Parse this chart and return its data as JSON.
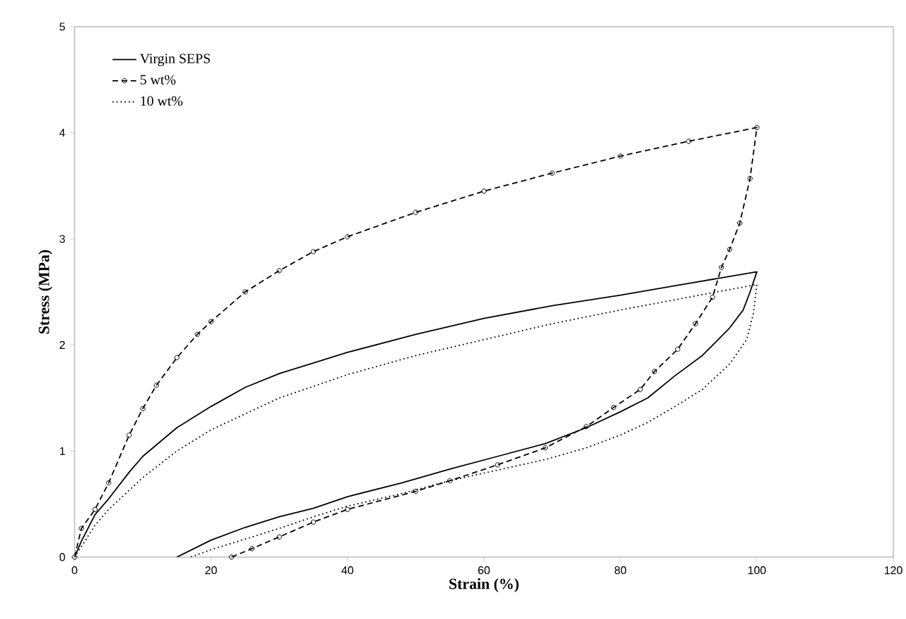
{
  "chart_data": {
    "type": "line",
    "xlabel": "Strain (%)",
    "ylabel": "Stress (MPa)",
    "xlim": [
      0,
      120
    ],
    "ylim": [
      0,
      5
    ],
    "xticks": [
      0,
      20,
      40,
      60,
      80,
      100,
      120
    ],
    "yticks": [
      0,
      1,
      2,
      3,
      4,
      5
    ],
    "legend": "top left",
    "series": [
      {
        "name": "Virgin SEPS",
        "color": "#000000",
        "line_style": "solid",
        "marker": "none",
        "x": [
          0,
          1,
          3,
          5,
          8,
          10,
          15,
          20,
          25,
          30,
          40,
          50,
          60,
          70,
          80,
          90,
          100,
          99,
          98,
          96,
          92,
          88,
          84,
          80,
          75,
          69,
          62,
          55,
          48,
          40,
          35,
          30,
          25,
          20,
          15
        ],
        "values": [
          0,
          0.15,
          0.4,
          0.55,
          0.8,
          0.95,
          1.22,
          1.42,
          1.6,
          1.73,
          1.93,
          2.1,
          2.25,
          2.37,
          2.47,
          2.58,
          2.69,
          2.5,
          2.33,
          2.16,
          1.9,
          1.71,
          1.5,
          1.37,
          1.22,
          1.07,
          0.95,
          0.83,
          0.7,
          0.57,
          0.46,
          0.38,
          0.28,
          0.16,
          0
        ]
      },
      {
        "name": "5 wt%",
        "color": "#000000",
        "line_style": "dashed",
        "marker": "circle",
        "x": [
          0,
          1,
          3,
          5,
          8,
          10,
          12,
          15,
          18,
          20,
          25,
          30,
          35,
          40,
          50,
          60,
          70,
          80,
          90,
          100,
          99,
          97.5,
          96,
          94.8,
          93.5,
          91,
          88.4,
          85,
          82.9,
          79,
          75,
          69,
          62,
          55,
          50,
          40,
          35,
          30,
          26,
          23
        ],
        "values": [
          0,
          0.27,
          0.45,
          0.7,
          1.15,
          1.4,
          1.62,
          1.88,
          2.1,
          2.22,
          2.5,
          2.7,
          2.88,
          3.02,
          3.25,
          3.45,
          3.62,
          3.78,
          3.92,
          4.05,
          3.57,
          3.15,
          2.9,
          2.73,
          2.45,
          2.2,
          1.96,
          1.75,
          1.58,
          1.41,
          1.23,
          1.03,
          0.87,
          0.72,
          0.62,
          0.45,
          0.33,
          0.19,
          0.08,
          0
        ]
      },
      {
        "name": "10 wt%",
        "color": "#000000",
        "line_style": "dotted",
        "marker": "none",
        "x": [
          0,
          3,
          5,
          10,
          15,
          20,
          25,
          30,
          40,
          50,
          60,
          70,
          80,
          90,
          100,
          99.5,
          98.5,
          96,
          92,
          88,
          84,
          80,
          75,
          69,
          62,
          55,
          48,
          40,
          35,
          30,
          25,
          20,
          17
        ],
        "values": [
          0,
          0.3,
          0.45,
          0.75,
          1.0,
          1.2,
          1.35,
          1.5,
          1.72,
          1.9,
          2.05,
          2.2,
          2.33,
          2.45,
          2.57,
          2.3,
          2.05,
          1.82,
          1.58,
          1.42,
          1.27,
          1.15,
          1.03,
          0.92,
          0.82,
          0.72,
          0.6,
          0.48,
          0.38,
          0.27,
          0.17,
          0.07,
          0
        ]
      }
    ]
  }
}
